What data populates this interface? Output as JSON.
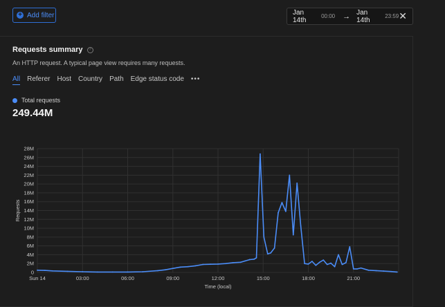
{
  "filter": {
    "add_label": "Add filter"
  },
  "date_range": {
    "start_date": "Jan 14th",
    "start_time": "00:00",
    "end_date": "Jan 14th",
    "end_time": "23:59"
  },
  "summary": {
    "title": "Requests summary",
    "subtitle": "An HTTP request. A typical page view requires many requests.",
    "tabs": [
      "All",
      "Referer",
      "Host",
      "Country",
      "Path",
      "Edge status code"
    ],
    "more": "•••",
    "legend_label": "Total requests",
    "total_value": "249.44M"
  },
  "colors": {
    "accent": "#4b8df8",
    "background": "#1d1d1d"
  },
  "chart_data": {
    "type": "line",
    "xlabel": "Time (local)",
    "ylabel": "Requests",
    "x_tick_labels": [
      "Sun 14",
      "03:00",
      "06:00",
      "09:00",
      "12:00",
      "15:00",
      "18:00",
      "21:00"
    ],
    "x_tick_hours": [
      0,
      3,
      6,
      9,
      12,
      15,
      18,
      21
    ],
    "xlim": [
      0,
      24
    ],
    "y_tick_labels": [
      "0",
      "2M",
      "4M",
      "6M",
      "8M",
      "10M",
      "12M",
      "14M",
      "16M",
      "18M",
      "20M",
      "22M",
      "24M",
      "26M",
      "28M"
    ],
    "ylim": [
      0,
      28
    ],
    "y_unit": "M",
    "grid": true,
    "series": [
      {
        "color": "#4b8df8",
        "x": [
          0,
          0.5,
          1,
          2,
          3,
          4,
          5,
          6,
          7,
          8,
          8.5,
          9,
          9.5,
          10,
          10.5,
          11,
          11.5,
          12,
          12.5,
          13,
          13.5,
          13.8,
          14.1,
          14.4,
          14.55,
          14.8,
          15.05,
          15.3,
          15.5,
          15.75,
          16,
          16.25,
          16.5,
          16.75,
          17,
          17.25,
          17.5,
          17.75,
          18,
          18.25,
          18.5,
          18.75,
          19,
          19.25,
          19.5,
          19.75,
          20,
          20.25,
          20.5,
          20.75,
          21,
          21.25,
          21.5,
          22,
          22.5,
          23,
          23.5,
          23.9
        ],
        "y": [
          0.5,
          0.45,
          0.35,
          0.25,
          0.15,
          0.1,
          0.1,
          0.1,
          0.15,
          0.4,
          0.6,
          0.9,
          1.2,
          1.3,
          1.5,
          1.8,
          1.85,
          1.9,
          2.0,
          2.2,
          2.3,
          2.6,
          2.9,
          3.0,
          3.3,
          26.8,
          8.0,
          4.2,
          4.4,
          5.5,
          13.5,
          15.8,
          13.8,
          22.0,
          8.5,
          20.2,
          10.5,
          2.0,
          1.9,
          2.5,
          1.6,
          2.3,
          2.8,
          1.8,
          2.1,
          1.3,
          4.0,
          1.8,
          2.2,
          5.8,
          0.8,
          0.8,
          1.0,
          0.5,
          0.4,
          0.3,
          0.2,
          0.1
        ]
      }
    ]
  }
}
